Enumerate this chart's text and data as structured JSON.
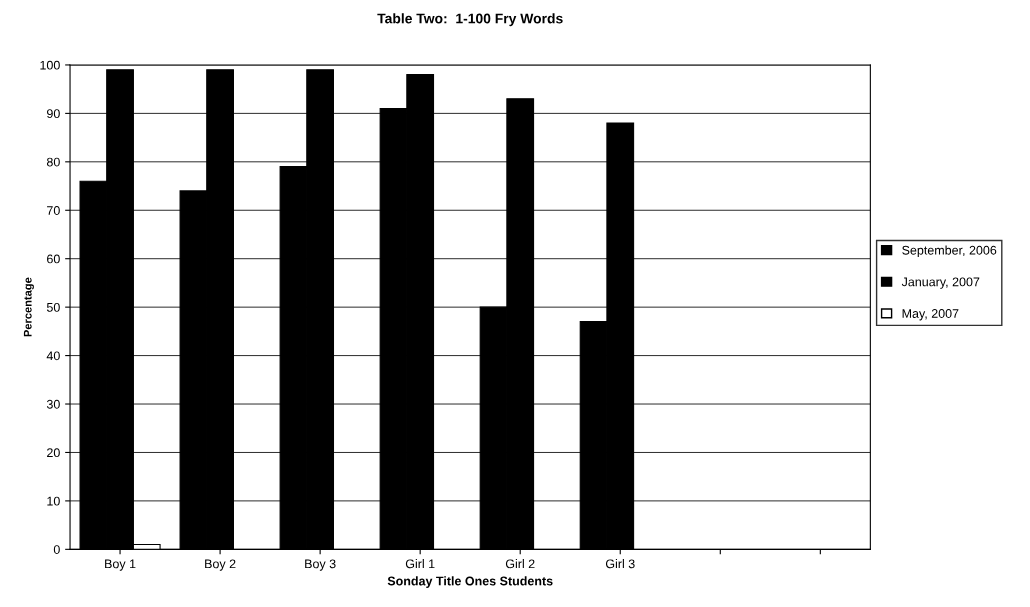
{
  "chart_data": {
    "type": "bar",
    "title": "Table Two:  1-100 Fry Words",
    "xlabel": "Sonday Title Ones Students",
    "ylabel": "Percentage",
    "categories": [
      "Boy 1",
      "Boy 2",
      "Boy 3",
      "Girl 1",
      "Girl 2",
      "Girl 3",
      null,
      null
    ],
    "series": [
      {
        "name": "September, 2006",
        "color": "#000000",
        "values": [
          76,
          74,
          79,
          91,
          50,
          47,
          null,
          null
        ]
      },
      {
        "name": "January, 2007",
        "color": "#000000",
        "values": [
          99,
          99,
          99,
          98,
          93,
          88,
          null,
          null
        ]
      },
      {
        "name": "May, 2007",
        "color": "#ffffff",
        "values": [
          1,
          0,
          0,
          0,
          0,
          0,
          null,
          null
        ]
      }
    ],
    "ylim": [
      0,
      100
    ],
    "yticks": [
      0,
      10,
      20,
      30,
      40,
      50,
      60,
      70,
      80,
      90,
      100
    ],
    "grid": "y",
    "legend": "right"
  }
}
